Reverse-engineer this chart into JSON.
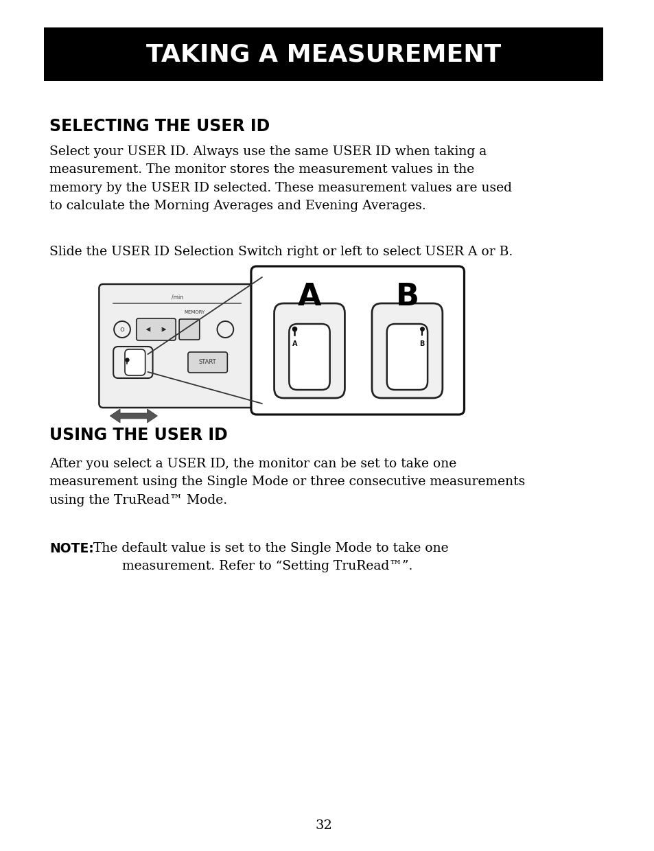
{
  "page_bg": "#ffffff",
  "title_bg": "#000000",
  "title_text": "TAKING A MEASUREMENT",
  "title_text_color": "#ffffff",
  "section1_heading": "SELECTING THE USER ID",
  "section1_para1": "Select your USER ID. Always use the same USER ID when taking a\nmeasurement. The monitor stores the measurement values in the\nmemory by the USER ID selected. These measurement values are used\nto calculate the Morning Averages and Evening Averages.",
  "section1_para2": "Slide the USER ID Selection Switch right or left to select USER A or B.",
  "section2_heading": "USING THE USER ID",
  "section2_para1": "After you select a USER ID, the monitor can be set to take one\nmeasurement using the Single Mode or three consecutive measurements\nusing the TruRead™ Mode.",
  "note_label": "NOTE:",
  "note_text": " The default value is set to the Single Mode to take one\n        measurement. Refer to “Setting TruRead™”.",
  "page_number": "32"
}
